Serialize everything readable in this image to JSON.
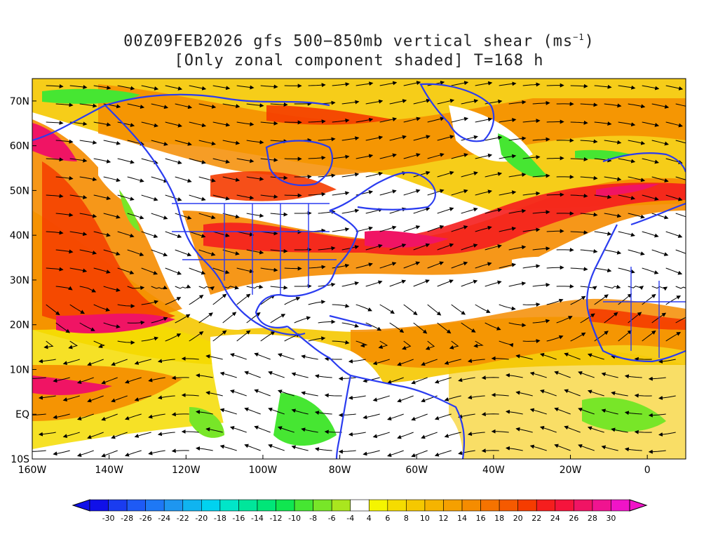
{
  "title": {
    "line1_prefix": "00Z09FEB2026 gfs 500−850mb vertical shear (ms",
    "line1_sup": "−1",
    "line1_suffix": ")",
    "line2": "[Only zonal component shaded] T=168 h"
  },
  "map": {
    "lon_range": [
      -160,
      10
    ],
    "lat_range": [
      -10,
      75
    ],
    "lon_ticks": [
      {
        "value": -160,
        "label": "160W"
      },
      {
        "value": -140,
        "label": "140W"
      },
      {
        "value": -120,
        "label": "120W"
      },
      {
        "value": -100,
        "label": "100W"
      },
      {
        "value": -80,
        "label": "80W"
      },
      {
        "value": -60,
        "label": "60W"
      },
      {
        "value": -40,
        "label": "40W"
      },
      {
        "value": -20,
        "label": "20W"
      },
      {
        "value": 0,
        "label": "0"
      }
    ],
    "lat_ticks": [
      {
        "value": 70,
        "label": "70N"
      },
      {
        "value": 60,
        "label": "60N"
      },
      {
        "value": 50,
        "label": "50N"
      },
      {
        "value": 40,
        "label": "40N"
      },
      {
        "value": 30,
        "label": "30N"
      },
      {
        "value": 20,
        "label": "20N"
      },
      {
        "value": 10,
        "label": "10N"
      },
      {
        "value": 0,
        "label": "EQ"
      },
      {
        "value": -10,
        "label": "10S"
      }
    ],
    "coastline_color": "#2a3cf0",
    "streamline_color": "#000000"
  },
  "colorbar": {
    "labels": [
      "-30",
      "-28",
      "-26",
      "-24",
      "-22",
      "-20",
      "-18",
      "-16",
      "-14",
      "-12",
      "-10",
      "-8",
      "-6",
      "-4",
      "4",
      "6",
      "8",
      "10",
      "12",
      "14",
      "16",
      "18",
      "20",
      "22",
      "24",
      "26",
      "28",
      "30"
    ],
    "colors": [
      "#1010e8",
      "#1a3cf0",
      "#1e5af5",
      "#1e78f5",
      "#1e96f0",
      "#10b4f0",
      "#00d2f0",
      "#00e6c8",
      "#00e69b",
      "#00e678",
      "#10e650",
      "#46e632",
      "#78e628",
      "#aae61e",
      "#ffffff",
      "#f5f500",
      "#f5dc00",
      "#f5c800",
      "#f5b400",
      "#f5a000",
      "#f58c00",
      "#f57300",
      "#f55a00",
      "#f53c00",
      "#f51e1e",
      "#f5143c",
      "#f01464",
      "#f01490",
      "#f014c8"
    ]
  }
}
